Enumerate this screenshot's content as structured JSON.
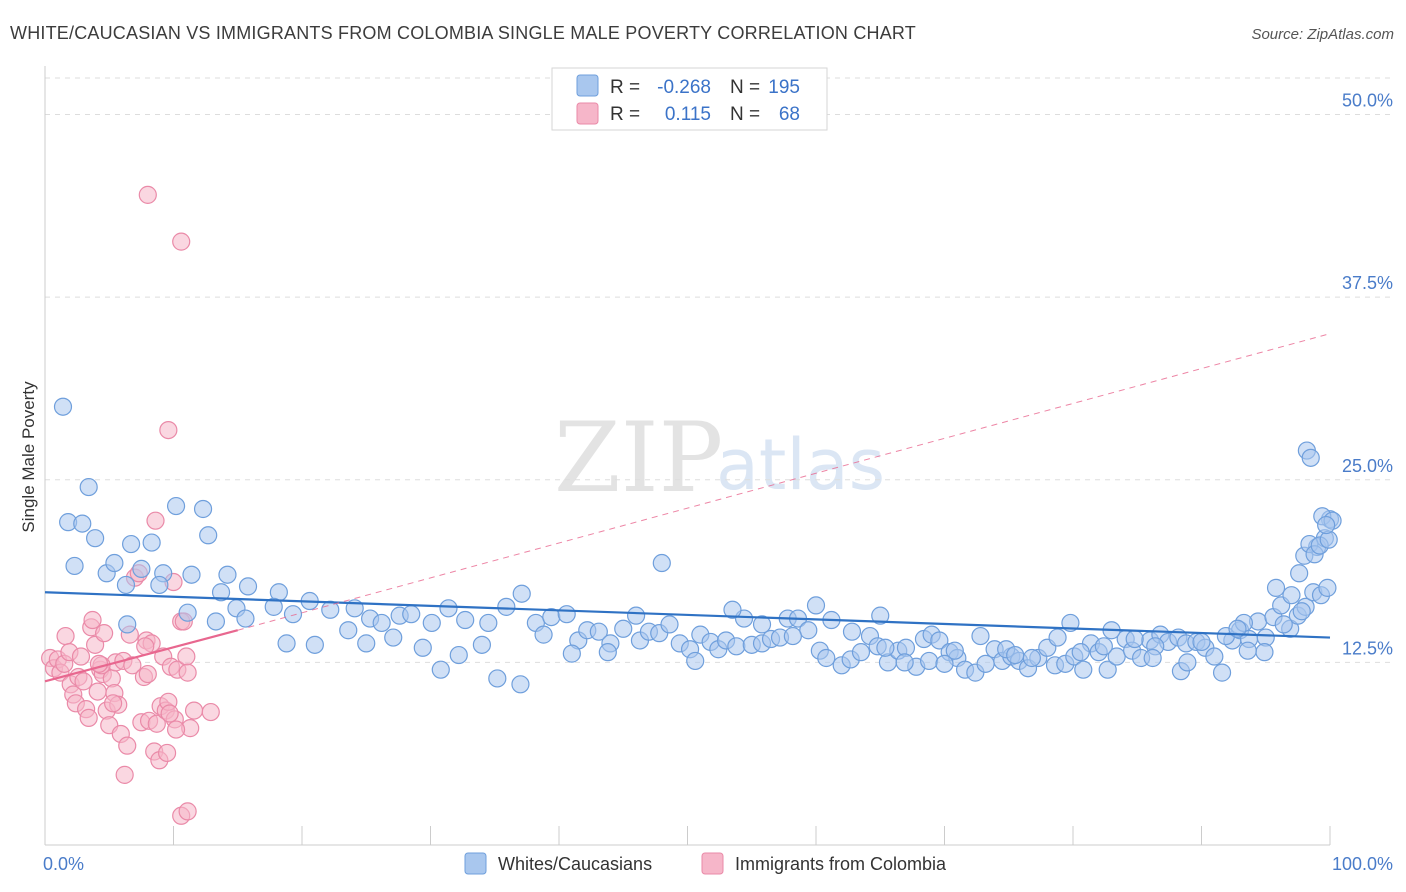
{
  "chart_data": {
    "type": "scatter",
    "title": "WHITE/CAUCASIAN VS IMMIGRANTS FROM COLOMBIA SINGLE MALE POVERTY CORRELATION CHART",
    "source": "Source: ZipAtlas.com",
    "ylabel": "Single Male Poverty",
    "xlabel": "",
    "xlim": [
      0,
      100
    ],
    "ylim": [
      0,
      52.5
    ],
    "x_tick_labels": [
      "0.0%",
      "100.0%"
    ],
    "y_ticks": [
      {
        "value": 12.5,
        "label": "12.5%"
      },
      {
        "value": 25.0,
        "label": "25.0%"
      },
      {
        "value": 37.5,
        "label": "37.5%"
      },
      {
        "value": 50.0,
        "label": "50.0%"
      }
    ],
    "watermark": {
      "zip": "ZIP",
      "atlas": "atlas"
    },
    "stats": [
      {
        "r_label": "R =",
        "r": "-0.268",
        "n_label": "N =",
        "n": "195"
      },
      {
        "r_label": "R =",
        "r": "0.115",
        "n_label": "N =",
        "n": "68"
      }
    ],
    "legend": [
      "Whites/Caucasians",
      "Immigrants from Colombia"
    ],
    "colors": {
      "blue_fill": "#a9c7ee",
      "blue_stroke": "#6f9fdc",
      "blue_line": "#2f72c4",
      "pink_fill": "#f6b6c9",
      "pink_stroke": "#ea8aa8",
      "pink_line": "#e8678f",
      "grid": "#dddddd",
      "axis_text": "#4a7cc9"
    },
    "series": [
      {
        "name": "Whites/Caucasians",
        "trend": {
          "x": [
            0,
            100
          ],
          "y": [
            17.3,
            14.2
          ],
          "style": "solid"
        },
        "points": [
          [
            1.4,
            30.0
          ],
          [
            3.4,
            24.5
          ],
          [
            1.8,
            22.1
          ],
          [
            2.9,
            22.0
          ],
          [
            3.9,
            21.0
          ],
          [
            6.7,
            20.6
          ],
          [
            8.3,
            20.7
          ],
          [
            10.2,
            23.2
          ],
          [
            12.3,
            23.0
          ],
          [
            12.7,
            21.2
          ],
          [
            2.3,
            19.1
          ],
          [
            4.8,
            18.6
          ],
          [
            5.4,
            19.3
          ],
          [
            6.3,
            17.8
          ],
          [
            7.5,
            18.9
          ],
          [
            9.2,
            18.6
          ],
          [
            11.4,
            18.5
          ],
          [
            14.2,
            18.5
          ],
          [
            15.8,
            17.7
          ],
          [
            18.2,
            17.3
          ],
          [
            8.9,
            17.8
          ],
          [
            13.7,
            17.3
          ],
          [
            11.1,
            15.9
          ],
          [
            14.9,
            16.2
          ],
          [
            15.6,
            15.5
          ],
          [
            17.8,
            16.3
          ],
          [
            19.3,
            15.8
          ],
          [
            20.6,
            16.7
          ],
          [
            22.2,
            16.1
          ],
          [
            24.1,
            16.2
          ],
          [
            25.3,
            15.5
          ],
          [
            26.2,
            15.2
          ],
          [
            27.6,
            15.7
          ],
          [
            28.5,
            15.8
          ],
          [
            30.1,
            15.2
          ],
          [
            31.4,
            16.2
          ],
          [
            32.7,
            15.4
          ],
          [
            34.5,
            15.2
          ],
          [
            35.9,
            16.3
          ],
          [
            37.1,
            17.2
          ],
          [
            6.4,
            15.1
          ],
          [
            13.3,
            15.3
          ],
          [
            18.8,
            13.8
          ],
          [
            21.0,
            13.7
          ],
          [
            23.6,
            14.7
          ],
          [
            25.0,
            13.8
          ],
          [
            27.1,
            14.2
          ],
          [
            29.4,
            13.5
          ],
          [
            30.8,
            12.0
          ],
          [
            32.2,
            13.0
          ],
          [
            34.0,
            13.7
          ],
          [
            35.2,
            11.4
          ],
          [
            37.0,
            11.0
          ],
          [
            38.2,
            15.2
          ],
          [
            39.4,
            15.6
          ],
          [
            40.6,
            15.8
          ],
          [
            41.5,
            14.0
          ],
          [
            42.2,
            14.7
          ],
          [
            43.1,
            14.6
          ],
          [
            44.0,
            13.8
          ],
          [
            45.0,
            14.8
          ],
          [
            46.3,
            14.0
          ],
          [
            47.0,
            14.6
          ],
          [
            47.8,
            14.5
          ],
          [
            48.6,
            15.1
          ],
          [
            49.4,
            13.8
          ],
          [
            50.2,
            13.4
          ],
          [
            51.0,
            14.4
          ],
          [
            51.8,
            13.9
          ],
          [
            52.4,
            13.4
          ],
          [
            53.0,
            14.0
          ],
          [
            53.8,
            13.6
          ],
          [
            54.4,
            15.5
          ],
          [
            55.0,
            13.7
          ],
          [
            55.8,
            13.8
          ],
          [
            56.5,
            14.1
          ],
          [
            57.2,
            14.2
          ],
          [
            57.8,
            15.5
          ],
          [
            58.6,
            15.5
          ],
          [
            59.4,
            14.7
          ],
          [
            60.3,
            13.3
          ],
          [
            61.2,
            15.4
          ],
          [
            62.0,
            12.3
          ],
          [
            62.7,
            12.7
          ],
          [
            63.5,
            13.2
          ],
          [
            64.2,
            14.3
          ],
          [
            64.8,
            13.6
          ],
          [
            65.6,
            12.5
          ],
          [
            66.4,
            13.3
          ],
          [
            67.0,
            13.5
          ],
          [
            67.8,
            12.2
          ],
          [
            68.4,
            14.1
          ],
          [
            69.0,
            14.4
          ],
          [
            69.6,
            14.0
          ],
          [
            70.4,
            13.2
          ],
          [
            71.0,
            12.8
          ],
          [
            71.6,
            12.0
          ],
          [
            72.4,
            11.8
          ],
          [
            73.2,
            12.4
          ],
          [
            73.9,
            13.4
          ],
          [
            74.5,
            12.6
          ],
          [
            75.2,
            12.9
          ],
          [
            75.8,
            12.6
          ],
          [
            76.5,
            12.1
          ],
          [
            77.3,
            12.8
          ],
          [
            78.0,
            13.5
          ],
          [
            78.6,
            12.3
          ],
          [
            79.4,
            12.4
          ],
          [
            80.1,
            12.9
          ],
          [
            80.8,
            12.0
          ],
          [
            81.4,
            13.8
          ],
          [
            82.0,
            13.2
          ],
          [
            82.7,
            12.0
          ],
          [
            83.4,
            12.9
          ],
          [
            84.1,
            14.1
          ],
          [
            84.6,
            13.3
          ],
          [
            85.3,
            12.8
          ],
          [
            86.0,
            14.0
          ],
          [
            86.8,
            14.4
          ],
          [
            87.4,
            13.9
          ],
          [
            88.2,
            14.2
          ],
          [
            88.8,
            13.8
          ],
          [
            89.6,
            13.9
          ],
          [
            90.3,
            13.5
          ],
          [
            91.0,
            12.9
          ],
          [
            91.6,
            11.8
          ],
          [
            92.4,
            14.0
          ],
          [
            93.0,
            14.7
          ],
          [
            93.7,
            14.1
          ],
          [
            94.4,
            15.3
          ],
          [
            95.0,
            14.2
          ],
          [
            95.6,
            15.6
          ],
          [
            96.2,
            16.4
          ],
          [
            96.9,
            14.8
          ],
          [
            97.5,
            15.7
          ],
          [
            98.1,
            16.3
          ],
          [
            98.7,
            17.3
          ],
          [
            99.3,
            17.1
          ],
          [
            99.8,
            17.6
          ],
          [
            94.9,
            13.2
          ],
          [
            48.0,
            19.3
          ],
          [
            38.8,
            14.4
          ],
          [
            41.0,
            13.1
          ],
          [
            43.8,
            13.2
          ],
          [
            46.0,
            15.7
          ],
          [
            50.6,
            12.6
          ],
          [
            53.5,
            16.1
          ],
          [
            55.8,
            15.1
          ],
          [
            58.2,
            14.3
          ],
          [
            60.8,
            12.8
          ],
          [
            62.8,
            14.6
          ],
          [
            65.0,
            15.7
          ],
          [
            66.9,
            12.5
          ],
          [
            68.8,
            12.6
          ],
          [
            70.8,
            13.3
          ],
          [
            72.8,
            14.3
          ],
          [
            74.8,
            13.4
          ],
          [
            76.8,
            12.8
          ],
          [
            78.8,
            14.2
          ],
          [
            80.6,
            13.2
          ],
          [
            82.4,
            13.6
          ],
          [
            84.8,
            14.1
          ],
          [
            86.4,
            13.6
          ],
          [
            88.4,
            11.9
          ],
          [
            90.0,
            13.9
          ],
          [
            91.9,
            14.3
          ],
          [
            93.3,
            15.2
          ],
          [
            95.8,
            17.6
          ],
          [
            97.0,
            17.1
          ],
          [
            92.8,
            14.8
          ],
          [
            60.0,
            16.4
          ],
          [
            65.4,
            13.5
          ],
          [
            70.0,
            12.4
          ],
          [
            75.5,
            13.0
          ],
          [
            79.8,
            15.2
          ],
          [
            83.0,
            14.7
          ],
          [
            86.2,
            12.8
          ],
          [
            88.9,
            12.5
          ],
          [
            93.6,
            13.3
          ],
          [
            96.4,
            15.1
          ],
          [
            97.8,
            16.0
          ],
          [
            99.0,
            20.4
          ],
          [
            99.6,
            21.0
          ],
          [
            98.0,
            19.8
          ],
          [
            98.4,
            20.6
          ],
          [
            98.8,
            19.9
          ],
          [
            99.2,
            20.5
          ],
          [
            99.9,
            20.9
          ],
          [
            97.6,
            18.6
          ],
          [
            100.0,
            22.3
          ],
          [
            98.2,
            27.0
          ],
          [
            98.5,
            26.5
          ],
          [
            99.4,
            22.5
          ],
          [
            100.2,
            22.2
          ],
          [
            99.7,
            21.9
          ]
        ]
      },
      {
        "name": "Immigrants from Colombia",
        "trend": {
          "x": [
            0,
            15
          ],
          "y": [
            11.2,
            14.7
          ],
          "style": "solid"
        },
        "trend_extended": {
          "x": [
            15,
            100
          ],
          "y": [
            14.7,
            35.0
          ],
          "style": "dashed"
        },
        "points": [
          [
            0.4,
            12.8
          ],
          [
            0.7,
            12.1
          ],
          [
            1.0,
            12.7
          ],
          [
            1.2,
            11.8
          ],
          [
            1.5,
            12.4
          ],
          [
            1.6,
            14.3
          ],
          [
            1.9,
            13.2
          ],
          [
            2.0,
            11.0
          ],
          [
            2.2,
            10.3
          ],
          [
            2.4,
            9.7
          ],
          [
            2.6,
            11.5
          ],
          [
            2.8,
            12.9
          ],
          [
            3.0,
            11.2
          ],
          [
            3.2,
            9.3
          ],
          [
            3.4,
            8.7
          ],
          [
            3.6,
            14.9
          ],
          [
            3.7,
            15.4
          ],
          [
            3.9,
            13.7
          ],
          [
            4.1,
            10.5
          ],
          [
            4.3,
            12.0
          ],
          [
            4.5,
            11.7
          ],
          [
            4.6,
            14.5
          ],
          [
            4.8,
            9.2
          ],
          [
            5.0,
            8.2
          ],
          [
            5.2,
            11.4
          ],
          [
            5.4,
            10.4
          ],
          [
            5.5,
            12.5
          ],
          [
            5.7,
            9.6
          ],
          [
            5.9,
            7.6
          ],
          [
            6.1,
            12.6
          ],
          [
            6.2,
            4.8
          ],
          [
            6.4,
            6.8
          ],
          [
            6.6,
            14.4
          ],
          [
            6.8,
            12.3
          ],
          [
            7.0,
            18.3
          ],
          [
            7.3,
            18.6
          ],
          [
            7.5,
            8.4
          ],
          [
            7.7,
            11.5
          ],
          [
            7.9,
            14.0
          ],
          [
            8.1,
            8.5
          ],
          [
            8.3,
            13.8
          ],
          [
            8.5,
            6.4
          ],
          [
            8.7,
            8.3
          ],
          [
            8.9,
            5.8
          ],
          [
            9.0,
            9.5
          ],
          [
            9.2,
            12.9
          ],
          [
            9.4,
            9.2
          ],
          [
            9.6,
            9.8
          ],
          [
            9.8,
            12.2
          ],
          [
            10.0,
            18.0
          ],
          [
            10.1,
            8.6
          ],
          [
            10.3,
            12.0
          ],
          [
            10.6,
            15.3
          ],
          [
            10.8,
            15.3
          ],
          [
            11.0,
            12.9
          ],
          [
            11.3,
            8.0
          ],
          [
            11.6,
            9.2
          ],
          [
            9.7,
            9.0
          ],
          [
            8.0,
            11.7
          ],
          [
            7.8,
            13.6
          ],
          [
            8.6,
            22.2
          ],
          [
            4.4,
            12.3
          ],
          [
            5.3,
            9.7
          ],
          [
            11.1,
            11.8
          ],
          [
            9.5,
            6.3
          ],
          [
            10.2,
            7.9
          ],
          [
            12.9,
            9.1
          ],
          [
            4.2,
            12.4
          ]
        ]
      }
    ],
    "outliers": [
      {
        "series": "Immigrants from Colombia",
        "points": [
          [
            8.0,
            44.5
          ],
          [
            10.6,
            41.3
          ],
          [
            9.6,
            28.4
          ],
          [
            10.6,
            2.0
          ],
          [
            11.1,
            2.3
          ]
        ]
      }
    ]
  }
}
